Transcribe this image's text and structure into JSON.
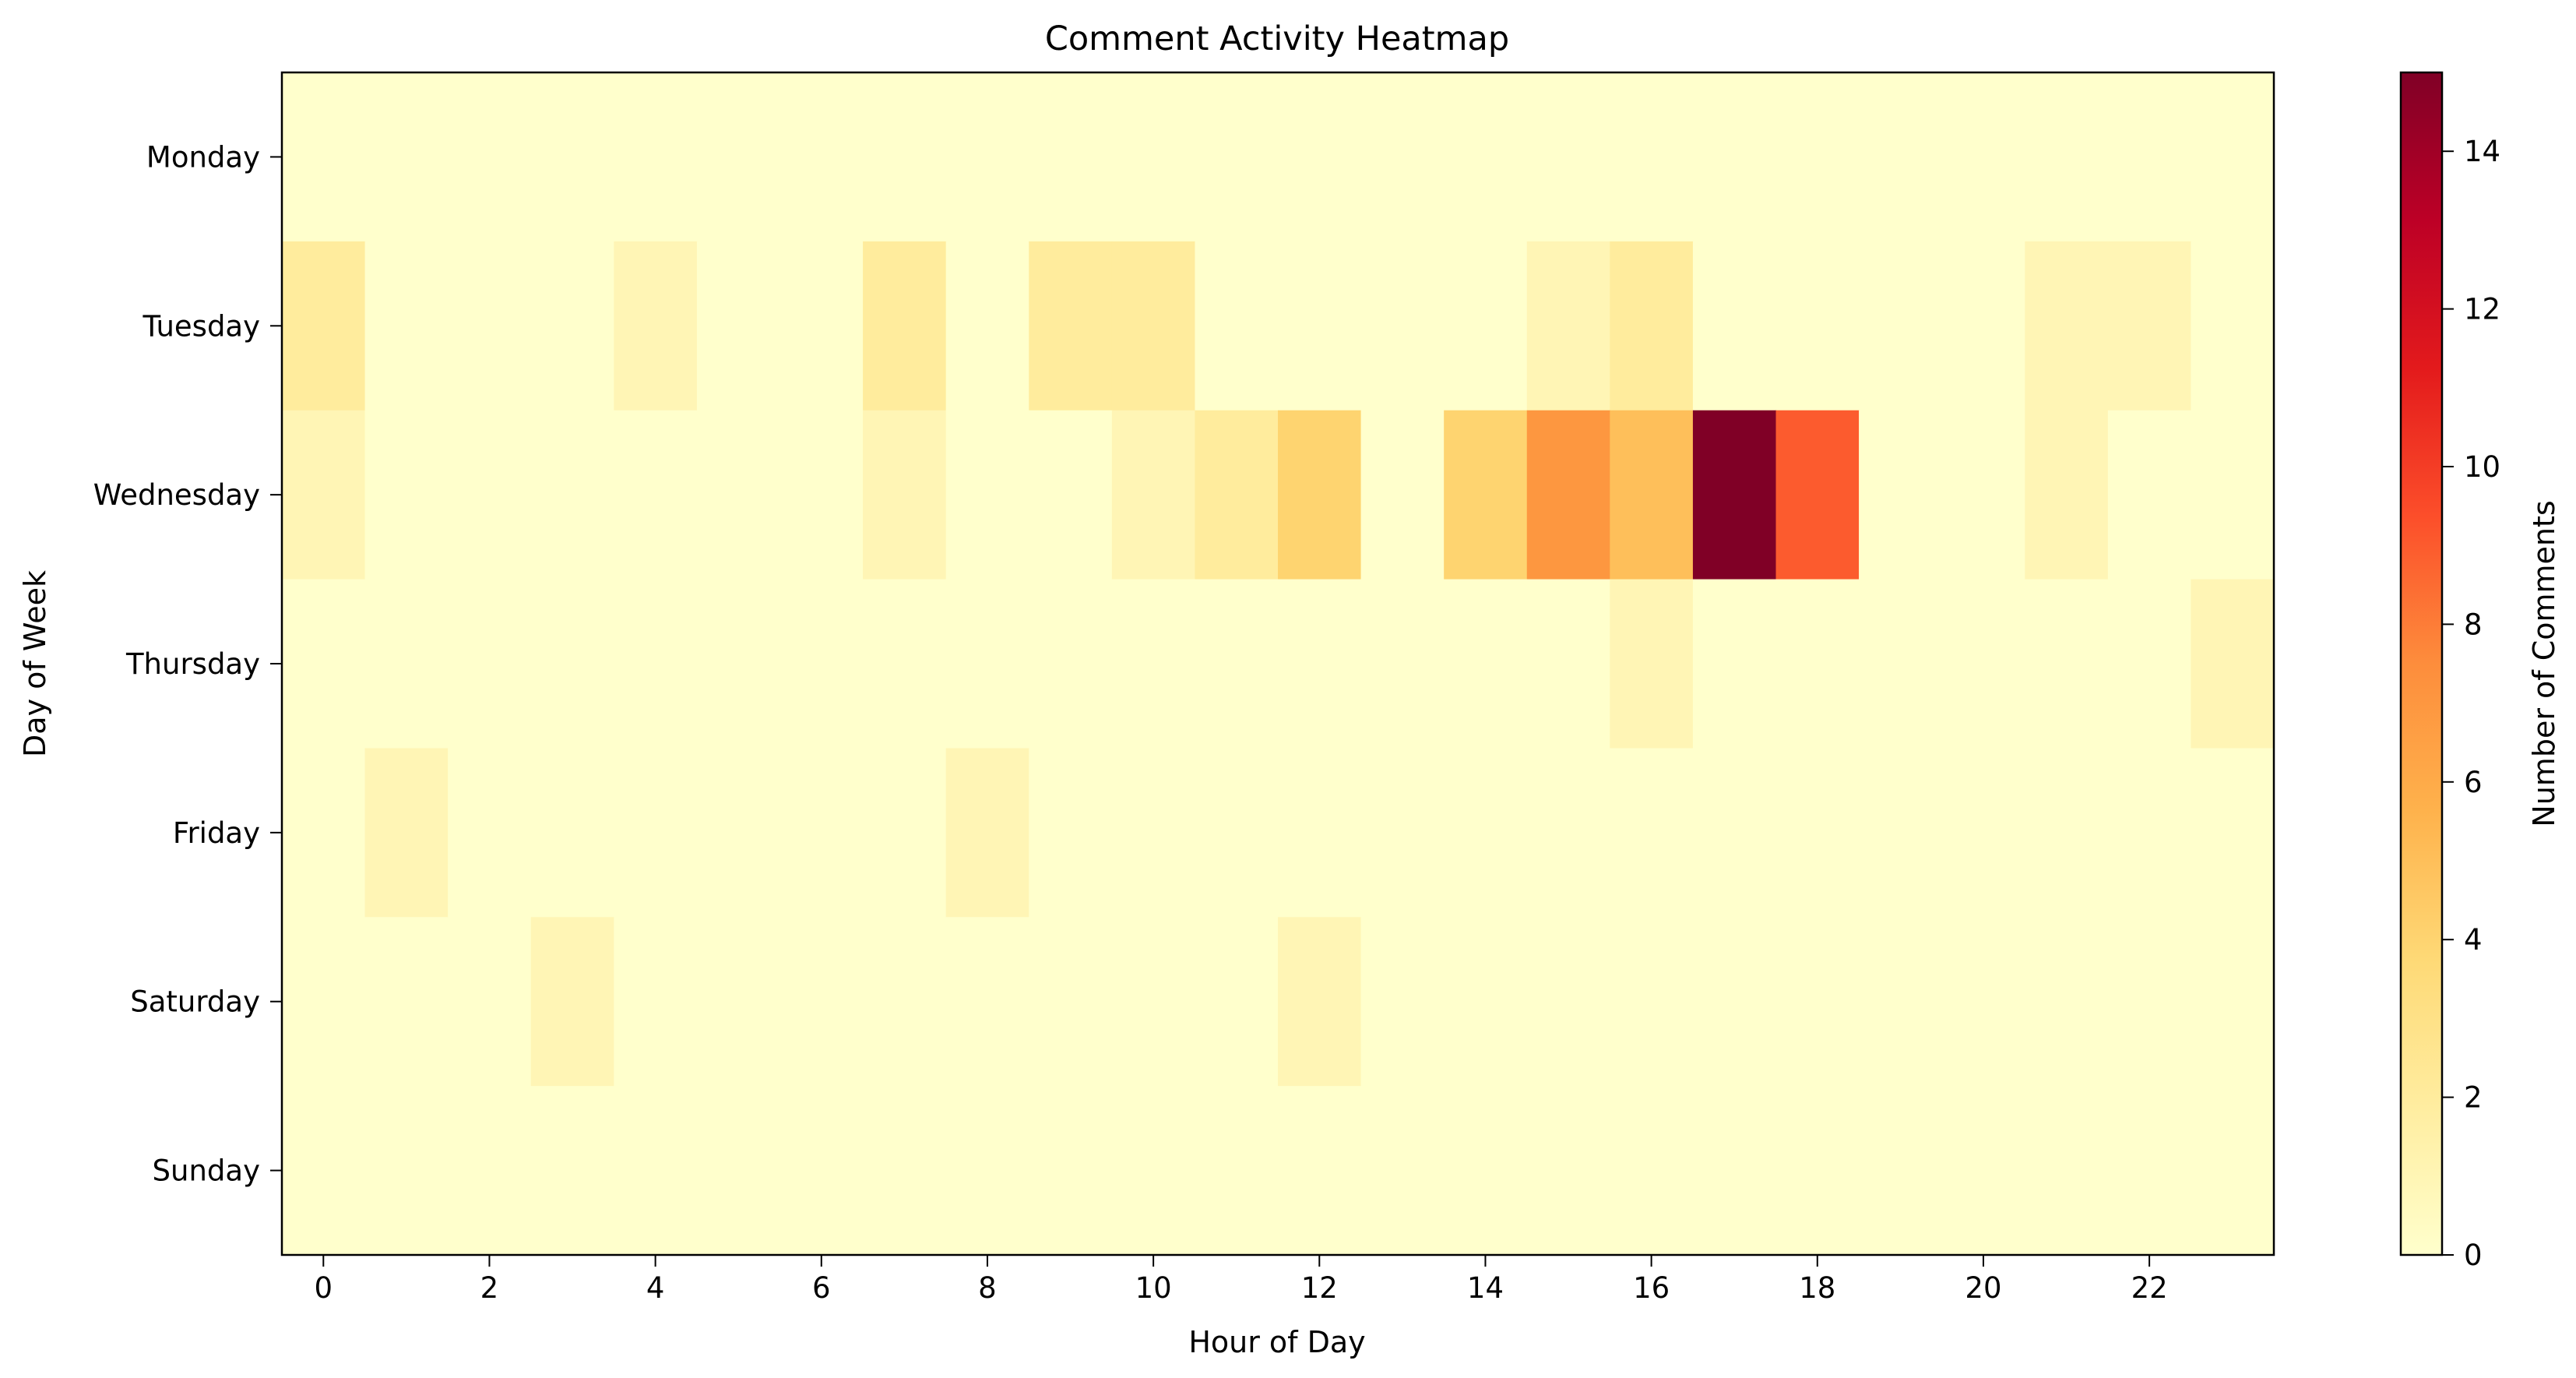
{
  "chart_data": {
    "type": "heatmap",
    "title": "Comment Activity Heatmap",
    "xlabel": "Hour of Day",
    "ylabel": "Day of Week",
    "colorbar_label": "Number of Comments",
    "colormap": "YlOrRd",
    "colormap_stops": [
      "#ffffcc",
      "#ffeda0",
      "#fed976",
      "#feb24c",
      "#fd8d3c",
      "#fc4e2a",
      "#e31a1c",
      "#bd0026",
      "#800026"
    ],
    "value_range": [
      0,
      15
    ],
    "x_categories": [
      0,
      1,
      2,
      3,
      4,
      5,
      6,
      7,
      8,
      9,
      10,
      11,
      12,
      13,
      14,
      15,
      16,
      17,
      18,
      19,
      20,
      21,
      22,
      23
    ],
    "x_tick_labels": [
      "0",
      "2",
      "4",
      "6",
      "8",
      "10",
      "12",
      "14",
      "16",
      "18",
      "20",
      "22"
    ],
    "y_categories": [
      "Monday",
      "Tuesday",
      "Wednesday",
      "Thursday",
      "Friday",
      "Saturday",
      "Sunday"
    ],
    "colorbar_ticks": [
      "0",
      "2",
      "4",
      "6",
      "8",
      "10",
      "12",
      "14"
    ],
    "grid": false,
    "values": [
      [
        0,
        0,
        0,
        0,
        0,
        0,
        0,
        0,
        0,
        0,
        0,
        0,
        0,
        0,
        0,
        0,
        0,
        0,
        0,
        0,
        0,
        0,
        0,
        0
      ],
      [
        2,
        0,
        0,
        0,
        1,
        0,
        0,
        2,
        0,
        2,
        2,
        0,
        0,
        0,
        0,
        1,
        2,
        0,
        0,
        0,
        0,
        1,
        1,
        0
      ],
      [
        1,
        0,
        0,
        0,
        0,
        0,
        0,
        1,
        0,
        0,
        1,
        2,
        4,
        0,
        4,
        7,
        5,
        15,
        9,
        0,
        0,
        1,
        0,
        0
      ],
      [
        0,
        0,
        0,
        0,
        0,
        0,
        0,
        0,
        0,
        0,
        0,
        0,
        0,
        0,
        0,
        0,
        1,
        0,
        0,
        0,
        0,
        0,
        0,
        1
      ],
      [
        0,
        1,
        0,
        0,
        0,
        0,
        0,
        0,
        1,
        0,
        0,
        0,
        0,
        0,
        0,
        0,
        0,
        0,
        0,
        0,
        0,
        0,
        0,
        0
      ],
      [
        0,
        0,
        0,
        1,
        0,
        0,
        0,
        0,
        0,
        0,
        0,
        0,
        1,
        0,
        0,
        0,
        0,
        0,
        0,
        0,
        0,
        0,
        0,
        0
      ],
      [
        0,
        0,
        0,
        0,
        0,
        0,
        0,
        0,
        0,
        0,
        0,
        0,
        0,
        0,
        0,
        0,
        0,
        0,
        0,
        0,
        0,
        0,
        0,
        0
      ]
    ]
  }
}
